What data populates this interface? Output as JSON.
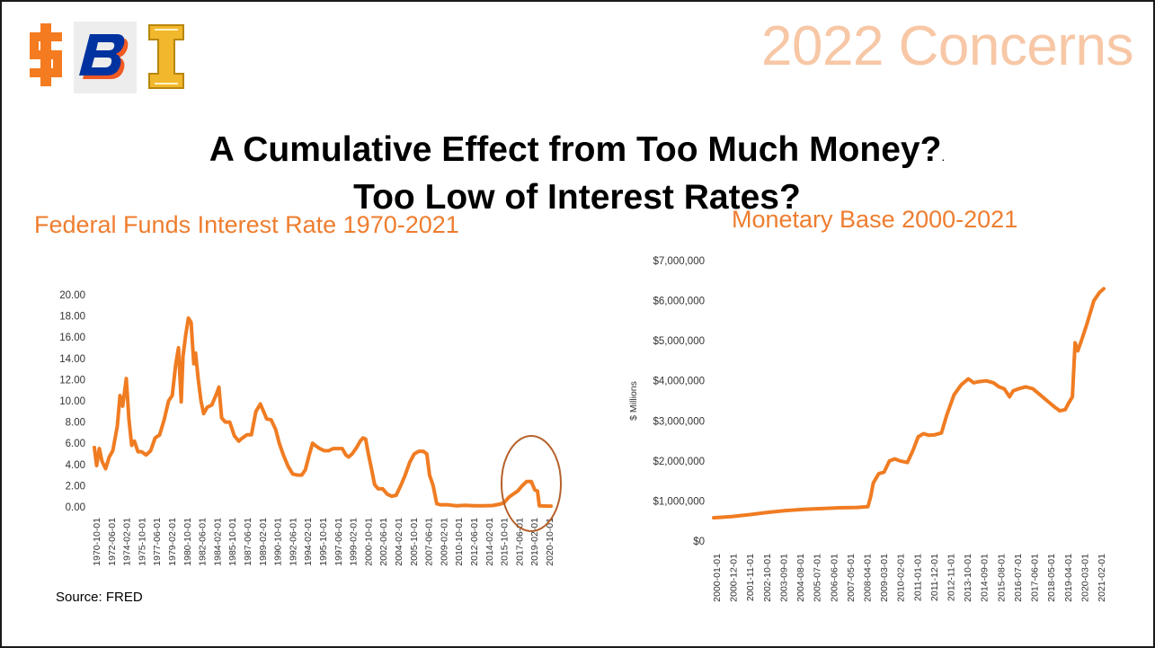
{
  "slide": {
    "title": "2022 Concerns",
    "headline_line1": "A Cumulative Effect from Too Much Money?",
    "headline_dot": ".",
    "headline_line2": "Too Low of Interest Rates?",
    "source": "Source: FRED"
  },
  "logos": [
    {
      "name": "isu-logo-icon",
      "color": "#f47b20"
    },
    {
      "name": "boise-b-logo-icon",
      "color": "#0033a0",
      "accent": "#f15a22"
    },
    {
      "name": "idaho-i-logo-icon",
      "color": "#f1b82d"
    }
  ],
  "colors": {
    "line": "#f07c22",
    "highlight_circle": "#b5612a",
    "title_accent": "#ee7d2f",
    "slide_title": "#f7c7a6"
  },
  "chart_data": [
    {
      "type": "line",
      "title": "Federal Funds Interest Rate 1970-2021",
      "xlabel": "",
      "ylabel": "",
      "ylim": [
        0,
        20
      ],
      "y_ticks": [
        "0.00",
        "2.00",
        "4.00",
        "6.00",
        "8.00",
        "10.00",
        "12.00",
        "14.00",
        "16.00",
        "18.00",
        "20.00"
      ],
      "x_tick_labels": [
        "1970-10-01",
        "1972-06-01",
        "1974-02-01",
        "1975-10-01",
        "1977-06-01",
        "1979-02-01",
        "1980-10-01",
        "1982-06-01",
        "1984-02-01",
        "1985-10-01",
        "1987-06-01",
        "1989-02-01",
        "1990-10-01",
        "1992-06-01",
        "1994-02-01",
        "1995-10-01",
        "1997-06-01",
        "1999-02-01",
        "2000-10-01",
        "2002-06-01",
        "2004-02-01",
        "2005-10-01",
        "2007-06-01",
        "2009-02-01",
        "2010-10-01",
        "2012-06-01",
        "2014-02-01",
        "2015-10-01",
        "2017-06-01",
        "2019-02-01",
        "2020-10-01"
      ],
      "x_range": [
        1970.75,
        2021.5
      ],
      "annotation": "circle around 2018-2021",
      "x": [
        1970.75,
        1971.0,
        1971.3,
        1971.6,
        1972.0,
        1972.4,
        1972.8,
        1973.3,
        1973.6,
        1973.9,
        1974.3,
        1974.6,
        1974.9,
        1975.2,
        1975.6,
        1976.0,
        1976.5,
        1977.0,
        1977.5,
        1978.0,
        1978.5,
        1979.0,
        1979.4,
        1979.8,
        1980.1,
        1980.4,
        1980.6,
        1980.9,
        1981.2,
        1981.5,
        1981.8,
        1982.0,
        1982.3,
        1982.6,
        1982.9,
        1983.3,
        1983.8,
        1984.3,
        1984.6,
        1984.9,
        1985.3,
        1985.8,
        1986.3,
        1986.8,
        1987.2,
        1987.7,
        1988.2,
        1988.7,
        1989.2,
        1989.5,
        1989.9,
        1990.4,
        1990.9,
        1991.3,
        1991.8,
        1992.3,
        1992.8,
        1993.3,
        1993.8,
        1994.2,
        1994.6,
        1995.0,
        1995.3,
        1995.8,
        1996.3,
        1996.8,
        1997.3,
        1997.8,
        1998.3,
        1998.7,
        1999.0,
        1999.4,
        1999.9,
        2000.3,
        2000.6,
        2000.9,
        2001.2,
        2001.5,
        2001.9,
        2002.3,
        2002.8,
        2003.3,
        2003.8,
        2004.3,
        2004.8,
        2005.3,
        2005.8,
        2006.3,
        2006.8,
        2007.3,
        2007.7,
        2008.0,
        2008.4,
        2008.8,
        2009.2,
        2010.0,
        2011.0,
        2012.0,
        2013.0,
        2014.0,
        2015.0,
        2015.8,
        2016.3,
        2016.8,
        2017.3,
        2017.8,
        2018.3,
        2018.8,
        2019.3,
        2019.7,
        2020.0,
        2020.2,
        2020.5,
        2021.0,
        2021.5
      ],
      "values": [
        5.6,
        3.9,
        5.5,
        4.3,
        3.6,
        4.7,
        5.3,
        7.6,
        10.5,
        9.5,
        12.1,
        8.2,
        5.8,
        6.2,
        5.2,
        5.2,
        4.9,
        5.3,
        6.5,
        6.8,
        8.2,
        10.0,
        10.5,
        13.5,
        15.0,
        9.9,
        14.2,
        16.2,
        17.8,
        17.4,
        13.5,
        14.5,
        12.0,
        10.0,
        8.8,
        9.4,
        9.6,
        10.6,
        11.3,
        8.4,
        8.0,
        8.0,
        6.7,
        6.2,
        6.5,
        6.8,
        6.8,
        9.0,
        9.7,
        9.1,
        8.3,
        8.2,
        7.3,
        6.0,
        4.8,
        3.8,
        3.1,
        3.0,
        3.0,
        3.5,
        4.8,
        6.0,
        5.8,
        5.5,
        5.3,
        5.3,
        5.5,
        5.5,
        5.5,
        4.9,
        4.7,
        5.0,
        5.6,
        6.2,
        6.5,
        6.4,
        5.0,
        3.8,
        2.1,
        1.7,
        1.7,
        1.2,
        1.0,
        1.1,
        2.0,
        3.0,
        4.2,
        5.0,
        5.25,
        5.25,
        5.0,
        3.0,
        2.0,
        0.3,
        0.2,
        0.2,
        0.1,
        0.15,
        0.1,
        0.1,
        0.13,
        0.25,
        0.4,
        0.9,
        1.2,
        1.5,
        2.0,
        2.4,
        2.4,
        1.6,
        1.5,
        0.1,
        0.09,
        0.08,
        0.08
      ]
    },
    {
      "type": "line",
      "title": "Monetary Base 2000-2021",
      "xlabel": "",
      "ylabel": "$ Millions",
      "ylim": [
        0,
        7000000
      ],
      "y_ticks": [
        "$0",
        "$1,000,000",
        "$2,000,000",
        "$3,000,000",
        "$4,000,000",
        "$5,000,000",
        "$6,000,000",
        "$7,000,000"
      ],
      "x_tick_labels": [
        "2000-01-01",
        "2000-12-01",
        "2001-11-01",
        "2002-10-01",
        "2003-09-01",
        "2004-08-01",
        "2005-07-01",
        "2006-06-01",
        "2007-05-01",
        "2008-04-01",
        "2009-03-01",
        "2010-02-01",
        "2011-01-01",
        "2011-12-01",
        "2012-11-01",
        "2013-10-01",
        "2014-09-01",
        "2015-08-01",
        "2016-07-01",
        "2017-06-01",
        "2018-05-01",
        "2019-04-01",
        "2020-03-01",
        "2021-02-01"
      ],
      "x_range": [
        2000.0,
        2021.75
      ],
      "x": [
        2000.0,
        2001.0,
        2002.0,
        2003.0,
        2004.0,
        2005.0,
        2006.0,
        2007.0,
        2008.0,
        2008.6,
        2008.75,
        2008.9,
        2009.2,
        2009.5,
        2009.8,
        2010.1,
        2010.4,
        2010.8,
        2011.1,
        2011.4,
        2011.7,
        2012.0,
        2012.3,
        2012.7,
        2013.0,
        2013.4,
        2013.8,
        2014.2,
        2014.5,
        2014.8,
        2015.2,
        2015.6,
        2015.9,
        2016.2,
        2016.5,
        2016.7,
        2017.0,
        2017.4,
        2017.8,
        2018.2,
        2018.6,
        2019.0,
        2019.3,
        2019.6,
        2019.8,
        2020.0,
        2020.15,
        2020.3,
        2020.5,
        2020.8,
        2021.0,
        2021.2,
        2021.5,
        2021.75
      ],
      "values": [
        580000,
        610000,
        660000,
        715000,
        760000,
        790000,
        810000,
        830000,
        840000,
        860000,
        1100000,
        1450000,
        1680000,
        1720000,
        2000000,
        2050000,
        2000000,
        1960000,
        2250000,
        2600000,
        2680000,
        2640000,
        2650000,
        2700000,
        3150000,
        3650000,
        3900000,
        4050000,
        3950000,
        3980000,
        4000000,
        3950000,
        3850000,
        3800000,
        3600000,
        3750000,
        3800000,
        3850000,
        3800000,
        3650000,
        3500000,
        3350000,
        3250000,
        3280000,
        3450000,
        3600000,
        4950000,
        4750000,
        5000000,
        5400000,
        5700000,
        6000000,
        6200000,
        6300000
      ]
    }
  ]
}
